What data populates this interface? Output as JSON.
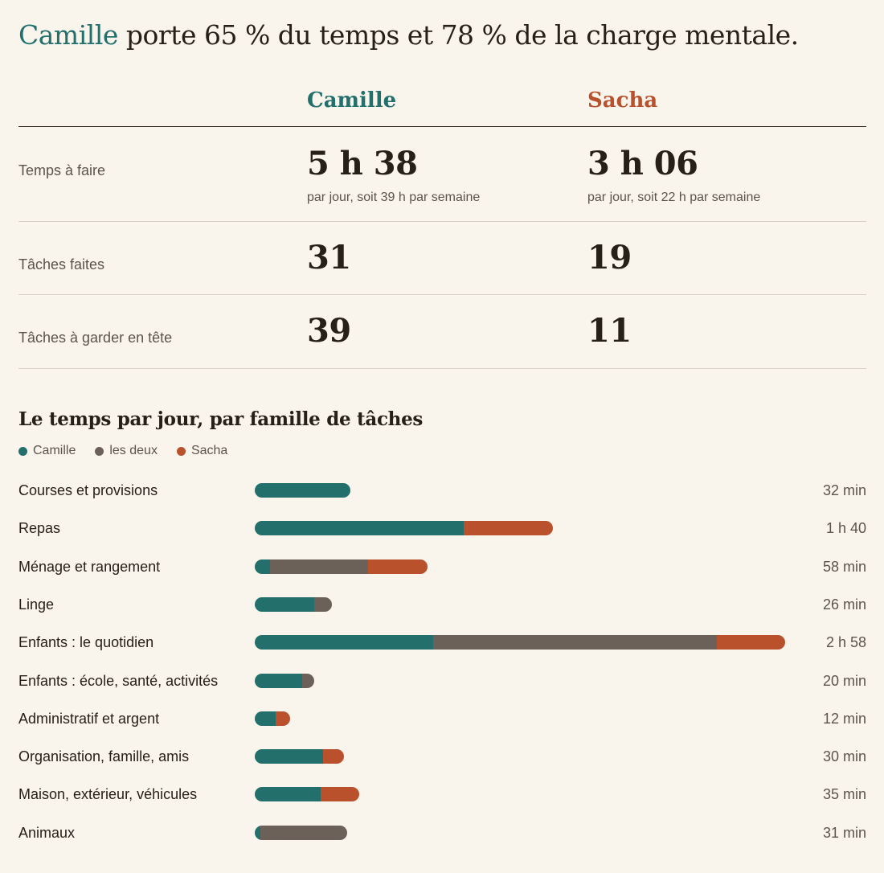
{
  "headline": {
    "name": "Camille",
    "rest": " porte 65 % du temps et 78 % de la charge mentale."
  },
  "people": [
    {
      "name": "Camille",
      "color": "#226f6b"
    },
    {
      "name": "Sacha",
      "color": "#b9512c"
    }
  ],
  "summary": [
    {
      "label": "Temps à faire",
      "values": [
        "5 h 38",
        "3 h 06"
      ],
      "subs": [
        "par jour, soit 39 h par semaine",
        "par jour, soit 22 h par semaine"
      ]
    },
    {
      "label": "Tâches faites",
      "values": [
        "31",
        "19"
      ]
    },
    {
      "label": "Tâches à garder en tête",
      "values": [
        "39",
        "11"
      ]
    }
  ],
  "chart_data": {
    "type": "bar",
    "stacked": true,
    "orientation": "horizontal",
    "title": "Le temps par jour, par famille de tâches",
    "unit": "min",
    "categories": [
      "Courses et provisions",
      "Repas",
      "Ménage et rangement",
      "Linge",
      "Enfants : le quotidien",
      "Enfants : école, santé, activités",
      "Administratif et argent",
      "Organisation, famille, amis",
      "Maison, extérieur, véhicules",
      "Animaux"
    ],
    "totals_label": [
      "32 min",
      "1 h 40",
      "58 min",
      "26 min",
      "2 h 58",
      "20 min",
      "12 min",
      "30 min",
      "35 min",
      "31 min"
    ],
    "series": [
      {
        "name": "Camille",
        "color": "#226f6b",
        "values": [
          32,
          70,
          5,
          20,
          60,
          16,
          7,
          23,
          22,
          2
        ]
      },
      {
        "name": "les deux",
        "color": "#6b6158",
        "values": [
          0,
          0,
          33,
          6,
          95,
          4,
          0,
          0,
          0,
          29
        ]
      },
      {
        "name": "Sacha",
        "color": "#b9512c",
        "values": [
          0,
          30,
          20,
          0,
          23,
          0,
          5,
          7,
          13,
          0
        ]
      }
    ],
    "xlim": [
      0,
      178
    ],
    "legend": "top-left"
  }
}
